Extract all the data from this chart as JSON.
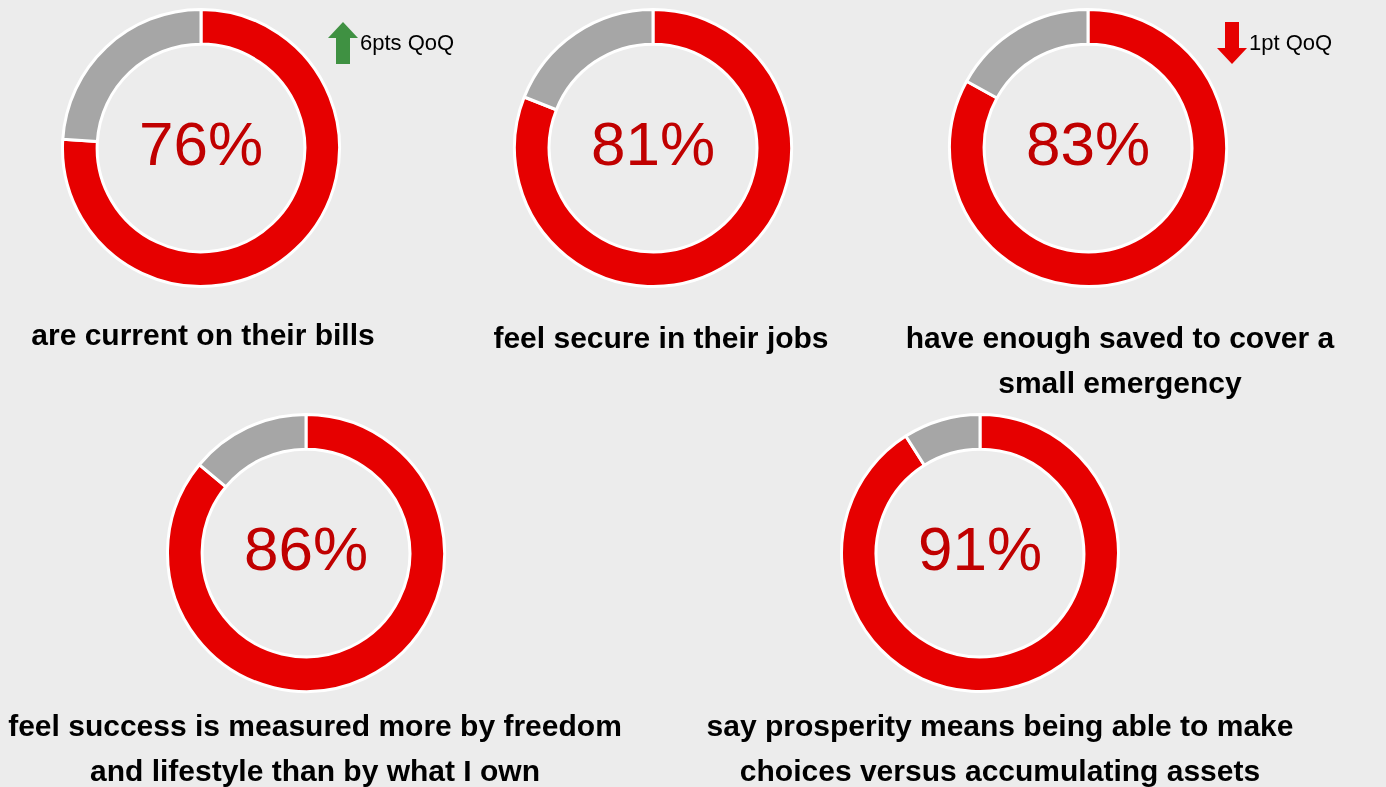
{
  "chart_data": [
    {
      "type": "donut",
      "title": "are current on their bills",
      "categories": [
        null,
        null
      ],
      "values": [
        76,
        24
      ],
      "colors": [
        "#e60000",
        "#a6a6a6"
      ],
      "value_labels": [
        "76%",
        null
      ],
      "annotations": [
        "6pts QoQ"
      ],
      "legend": false
    },
    {
      "type": "donut",
      "title": "feel secure in their jobs",
      "categories": [
        null,
        null
      ],
      "values": [
        81,
        19
      ],
      "colors": [
        "#e60000",
        "#a6a6a6"
      ],
      "value_labels": [
        "81%",
        null
      ],
      "legend": false
    },
    {
      "type": "donut",
      "title": "have enough saved to cover a small emergency",
      "categories": [
        null,
        null
      ],
      "values": [
        83,
        17
      ],
      "colors": [
        "#e60000",
        "#a6a6a6"
      ],
      "value_labels": [
        "83%",
        null
      ],
      "annotations": [
        "1pt QoQ"
      ],
      "legend": false
    },
    {
      "type": "donut",
      "title": "feel success is measured more by freedom and lifestyle than by what I own",
      "categories": [
        null,
        null
      ],
      "values": [
        86,
        14
      ],
      "colors": [
        "#e60000",
        "#a6a6a6"
      ],
      "value_labels": [
        "86%",
        null
      ],
      "legend": false
    },
    {
      "type": "donut",
      "title": "say prosperity means being able to make choices versus accumulating assets",
      "categories": [
        null,
        null
      ],
      "values": [
        91,
        9
      ],
      "colors": [
        "#e60000",
        "#a6a6a6"
      ],
      "value_labels": [
        "91%",
        null
      ],
      "legend": false
    }
  ]
}
